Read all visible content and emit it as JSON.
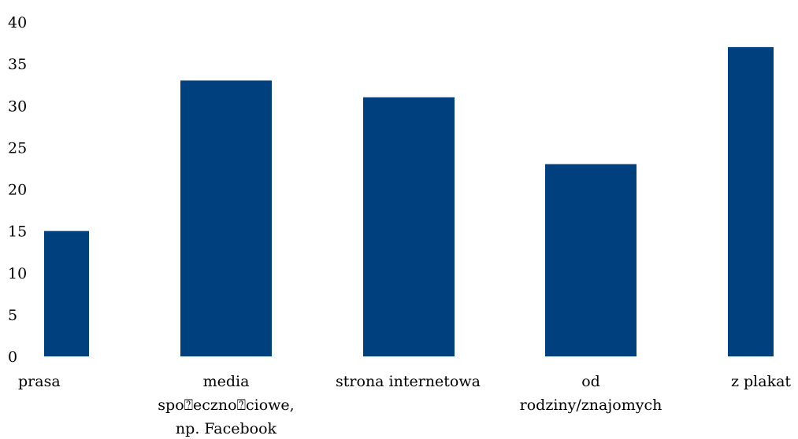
{
  "chart_data": {
    "type": "bar",
    "categories": [
      [
        "prasa"
      ],
      [
        "media",
        "spo⍰eczno⍰ciowe,",
        "np. Facebook"
      ],
      [
        "strona internetowa"
      ],
      [
        "od",
        "rodziny/znajomych"
      ],
      [
        "z plakat"
      ]
    ],
    "values": [
      15,
      33,
      31,
      23,
      37
    ],
    "ylim": [
      0,
      40
    ],
    "yticks": [
      0,
      5,
      10,
      15,
      20,
      25,
      30,
      35,
      40
    ],
    "grid": false,
    "bar_color": "#00407F"
  }
}
